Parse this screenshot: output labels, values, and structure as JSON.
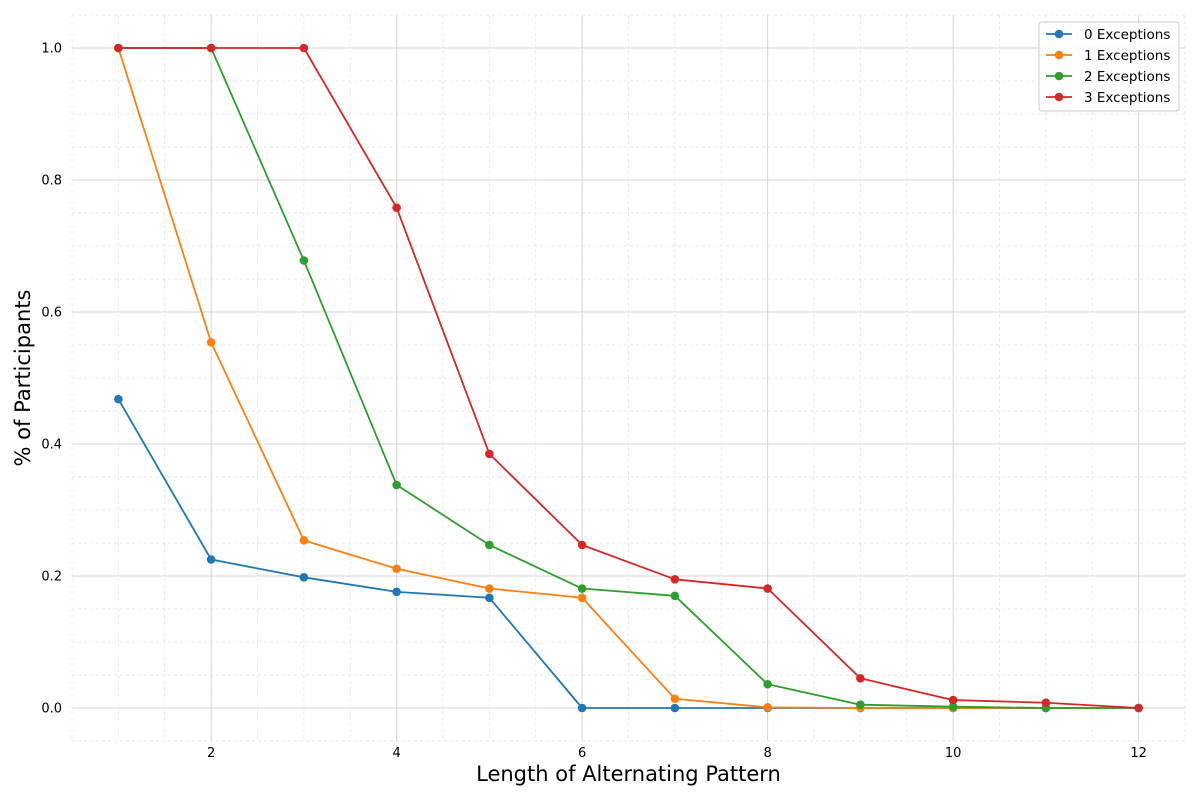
{
  "chart_data": {
    "type": "line",
    "title": "",
    "xlabel": "Length of Alternating Pattern",
    "ylabel": "% of Participants",
    "x": [
      1,
      2,
      3,
      4,
      5,
      6,
      7,
      8,
      9,
      10,
      11,
      12
    ],
    "xlim": [
      0.5,
      12.5
    ],
    "ylim": [
      -0.05,
      1.05
    ],
    "xticks": [
      2,
      4,
      6,
      8,
      10,
      12
    ],
    "xtick_labels": [
      "2",
      "4",
      "6",
      "8",
      "10",
      "12"
    ],
    "yticks": [
      0.0,
      0.2,
      0.4,
      0.6,
      0.8,
      1.0
    ],
    "ytick_labels": [
      "0.0",
      "0.2",
      "0.4",
      "0.6",
      "0.8",
      "1.0"
    ],
    "grid": true,
    "minor_grid": true,
    "legend_position": "top-right",
    "series": [
      {
        "name": "0 Exceptions",
        "color": "#1f77b4",
        "values": [
          0.468,
          0.225,
          0.198,
          0.176,
          0.167,
          0.0,
          0.0,
          0.0,
          0.0,
          0.0,
          0.0,
          0.0
        ]
      },
      {
        "name": "1 Exceptions",
        "color": "#ff7f0e",
        "values": [
          1.0,
          0.554,
          0.254,
          0.211,
          0.181,
          0.167,
          0.014,
          0.001,
          0.0,
          0.0,
          0.0,
          0.0
        ]
      },
      {
        "name": "2 Exceptions",
        "color": "#2ca02c",
        "values": [
          1.0,
          1.0,
          0.678,
          0.338,
          0.247,
          0.181,
          0.17,
          0.036,
          0.005,
          0.002,
          0.0,
          0.0
        ]
      },
      {
        "name": "3 Exceptions",
        "color": "#d62728",
        "values": [
          1.0,
          1.0,
          1.0,
          0.758,
          0.385,
          0.247,
          0.195,
          0.181,
          0.045,
          0.012,
          0.008,
          0.0
        ]
      }
    ]
  }
}
